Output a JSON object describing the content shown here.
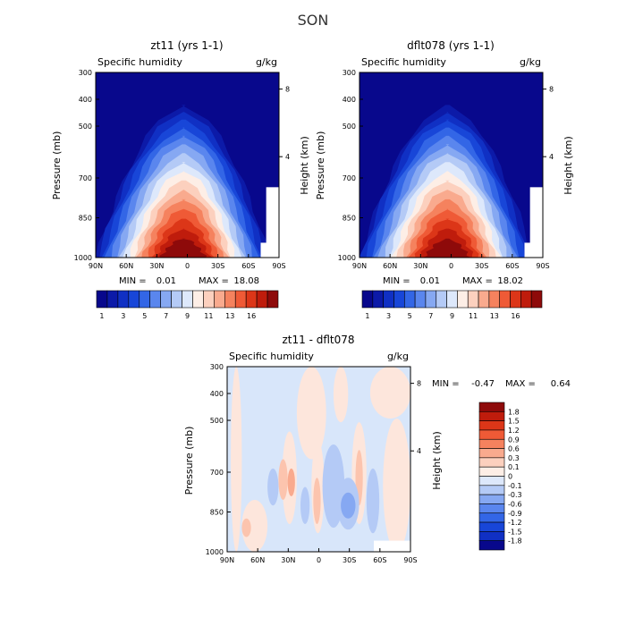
{
  "page_title": "SON",
  "chart_data": [
    {
      "type": "heatmap",
      "id": "zt11",
      "title": "zt11 (yrs 1-1)",
      "variable": "Specific humidity",
      "units": "g/kg",
      "ylabel": "Pressure (mb)",
      "ylabel_right": "Height (km)",
      "x_ticks": [
        "90N",
        "60N",
        "30N",
        "0",
        "30S",
        "60S",
        "90S"
      ],
      "y_ticks": [
        "300",
        "400",
        "500",
        "700",
        "850",
        "1000"
      ],
      "y_ticks_right": [
        "8",
        "4"
      ],
      "stats": {
        "min_label": "MIN =",
        "min": "0.01",
        "max_label": "MAX =",
        "max": "18.08"
      },
      "colorbar": {
        "labels": [
          "1",
          "3",
          "5",
          "7",
          "9",
          "11",
          "13",
          "16"
        ],
        "colors": [
          "#08088c",
          "#0c1aa8",
          "#1030c4",
          "#1846d8",
          "#3366e6",
          "#5a86ee",
          "#86a8f2",
          "#b4caf6",
          "#dde8fb",
          "#fdeee6",
          "#fcd0be",
          "#f9aa8e",
          "#f5825e",
          "#ef5a36",
          "#dc3618",
          "#bf1c0c",
          "#8e0a0a"
        ]
      }
    },
    {
      "type": "heatmap",
      "id": "dflt078",
      "title": "dflt078 (yrs 1-1)",
      "variable": "Specific humidity",
      "units": "g/kg",
      "ylabel": "Pressure (mb)",
      "ylabel_right": "Height (km)",
      "x_ticks": [
        "90N",
        "60N",
        "30N",
        "0",
        "30S",
        "60S",
        "90S"
      ],
      "y_ticks": [
        "300",
        "400",
        "500",
        "700",
        "850",
        "1000"
      ],
      "y_ticks_right": [
        "8",
        "4"
      ],
      "stats": {
        "min_label": "MIN =",
        "min": "0.01",
        "max_label": "MAX =",
        "max": "18.02"
      },
      "colorbar": {
        "labels": [
          "1",
          "3",
          "5",
          "7",
          "9",
          "11",
          "13",
          "16"
        ],
        "colors": [
          "#08088c",
          "#0c1aa8",
          "#1030c4",
          "#1846d8",
          "#3366e6",
          "#5a86ee",
          "#86a8f2",
          "#b4caf6",
          "#dde8fb",
          "#fdeee6",
          "#fcd0be",
          "#f9aa8e",
          "#f5825e",
          "#ef5a36",
          "#dc3618",
          "#bf1c0c",
          "#8e0a0a"
        ]
      }
    },
    {
      "type": "heatmap",
      "id": "difference",
      "title": "zt11 - dflt078",
      "variable": "Specific humidity",
      "units": "g/kg",
      "ylabel": "Pressure (mb)",
      "ylabel_right": "Height (km)",
      "x_ticks": [
        "90N",
        "60N",
        "30N",
        "0",
        "30S",
        "60S",
        "90S"
      ],
      "y_ticks": [
        "300",
        "400",
        "500",
        "700",
        "850",
        "1000"
      ],
      "y_ticks_right": [
        "8",
        "4"
      ],
      "stats": {
        "min_label": "MIN =",
        "min": "-0.47",
        "max_label": "MAX =",
        "max": "0.64"
      },
      "colorbar": {
        "labels": [
          "1.8",
          "1.5",
          "1.2",
          "0.9",
          "0.6",
          "0.3",
          "0.1",
          "0",
          "-0.1",
          "-0.3",
          "-0.6",
          "-0.9",
          "-1.2",
          "-1.5",
          "-1.8"
        ],
        "colors": [
          "#8e0a0a",
          "#bf1c0c",
          "#dc3618",
          "#ef5a36",
          "#f5825e",
          "#f9aa8e",
          "#fcd0be",
          "#fdeee6",
          "#dde8fb",
          "#b4caf6",
          "#86a8f2",
          "#5a86ee",
          "#3366e6",
          "#1846d8",
          "#1030c4",
          "#08088c"
        ]
      }
    }
  ]
}
